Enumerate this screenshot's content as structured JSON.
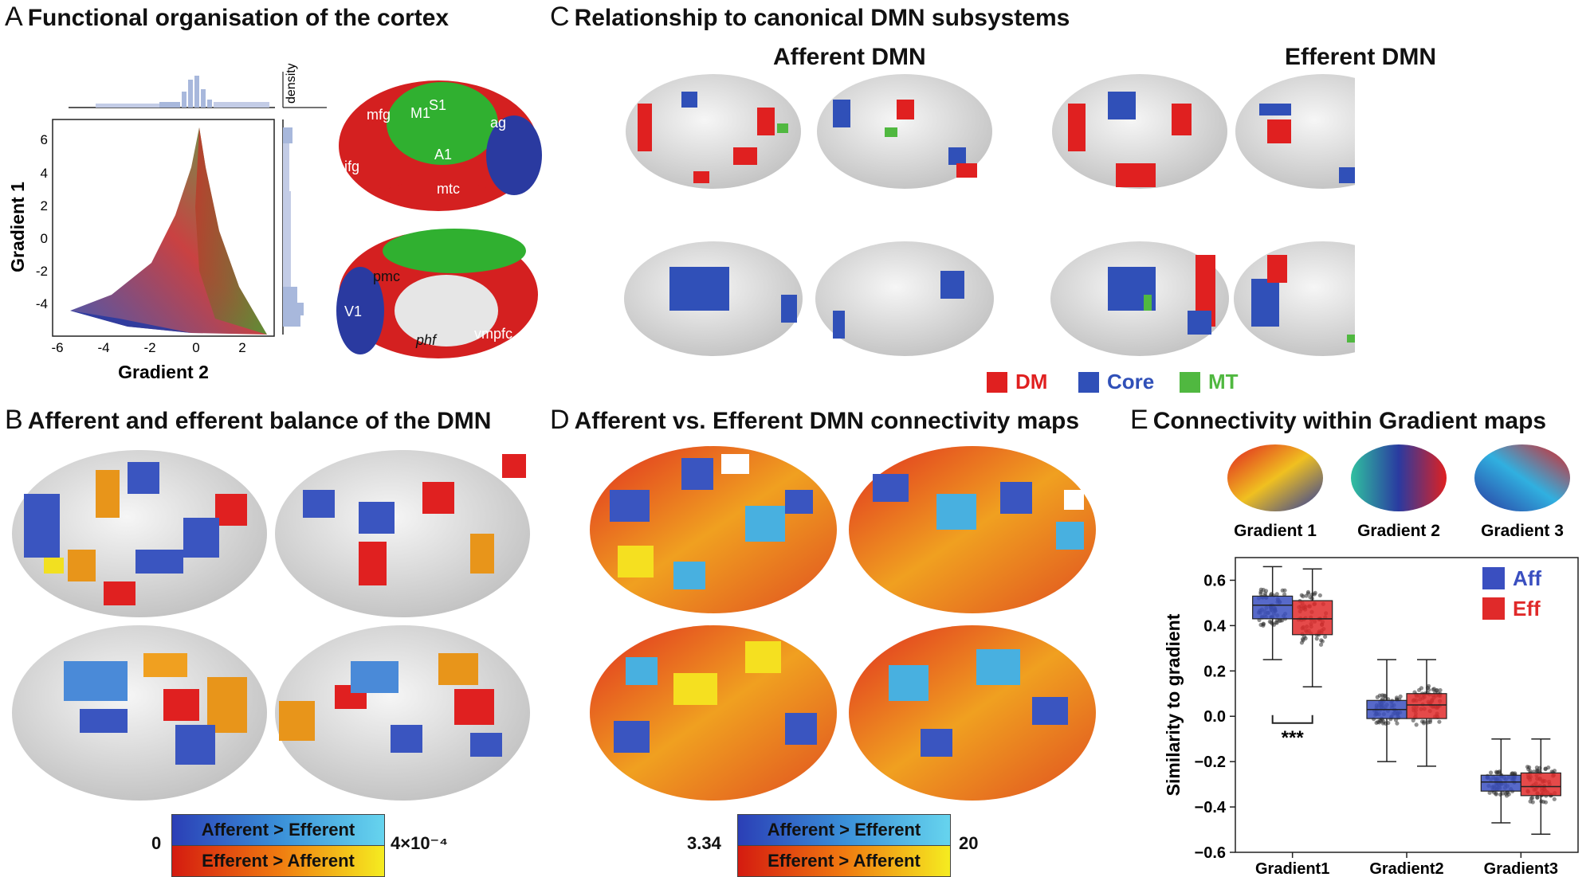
{
  "panels": {
    "A": {
      "letter": "A",
      "title": "Functional organisation of the cortex"
    },
    "B": {
      "letter": "B",
      "title": "Afferent and efferent balance of the DMN"
    },
    "C": {
      "letter": "C",
      "title": "Relationship to canonical DMN subsystems"
    },
    "D": {
      "letter": "D",
      "title": "Afferent vs. Efferent DMN connectivity maps"
    },
    "E": {
      "letter": "E",
      "title": "Connectivity within Gradient maps"
    }
  },
  "panelA": {
    "xlabel": "Gradient 2",
    "ylabel": "Gradient 1",
    "xticks": [
      "-6",
      "-4",
      "-2",
      "0",
      "2"
    ],
    "yticks": [
      "6",
      "4",
      "2",
      "0",
      "-2",
      "-4"
    ],
    "density_label": "density",
    "brain_labels_lateral": [
      "mfg",
      "M1",
      "S1",
      "ag",
      "ifg",
      "A1",
      "mtc"
    ],
    "brain_labels_medial": [
      "pmc",
      "V1",
      "phf",
      "vmpfc"
    ]
  },
  "panelC": {
    "afferent_title": "Afferent DMN",
    "efferent_title": "Efferent DMN",
    "legend": [
      {
        "label": "DM",
        "color": "#e02020"
      },
      {
        "label": "Core",
        "color": "#3050b8"
      },
      {
        "label": "MT",
        "color": "#50b840"
      }
    ]
  },
  "panelB": {
    "cbar_top": "Afferent > Efferent",
    "cbar_bottom": "Efferent > Afferent",
    "min": "0",
    "max": "4×10⁻⁴"
  },
  "panelD": {
    "cbar_top": "Afferent > Efferent",
    "cbar_bottom": "Efferent > Afferent",
    "min": "3.34",
    "max": "20"
  },
  "panelE": {
    "gradient_thumbs": [
      "Gradient 1",
      "Gradient 2",
      "Gradient 3"
    ],
    "significance": "***"
  },
  "chart_data": {
    "type": "box",
    "categories": [
      "Gradient1",
      "Gradient2",
      "Gradient3"
    ],
    "ylabel": "Similarity to gradient",
    "ylim": [
      -0.6,
      0.7
    ],
    "yticks": [
      "0.6",
      "0.4",
      "0.2",
      "0.0",
      "−0.2",
      "−0.4",
      "−0.6"
    ],
    "legend_position": "top-right",
    "series": [
      {
        "name": "Aff",
        "color": "#3a4fc0",
        "boxes": [
          {
            "min": 0.25,
            "q1": 0.43,
            "median": 0.49,
            "q3": 0.53,
            "max": 0.66
          },
          {
            "min": -0.2,
            "q1": -0.01,
            "median": 0.03,
            "q3": 0.07,
            "max": 0.25
          },
          {
            "min": -0.47,
            "q1": -0.33,
            "median": -0.29,
            "q3": -0.26,
            "max": -0.1
          }
        ]
      },
      {
        "name": "Eff",
        "color": "#e02a2a",
        "boxes": [
          {
            "min": 0.13,
            "q1": 0.36,
            "median": 0.43,
            "q3": 0.51,
            "max": 0.65
          },
          {
            "min": -0.22,
            "q1": -0.01,
            "median": 0.05,
            "q3": 0.1,
            "max": 0.25
          },
          {
            "min": -0.52,
            "q1": -0.35,
            "median": -0.31,
            "q3": -0.25,
            "max": -0.1
          }
        ]
      }
    ]
  }
}
